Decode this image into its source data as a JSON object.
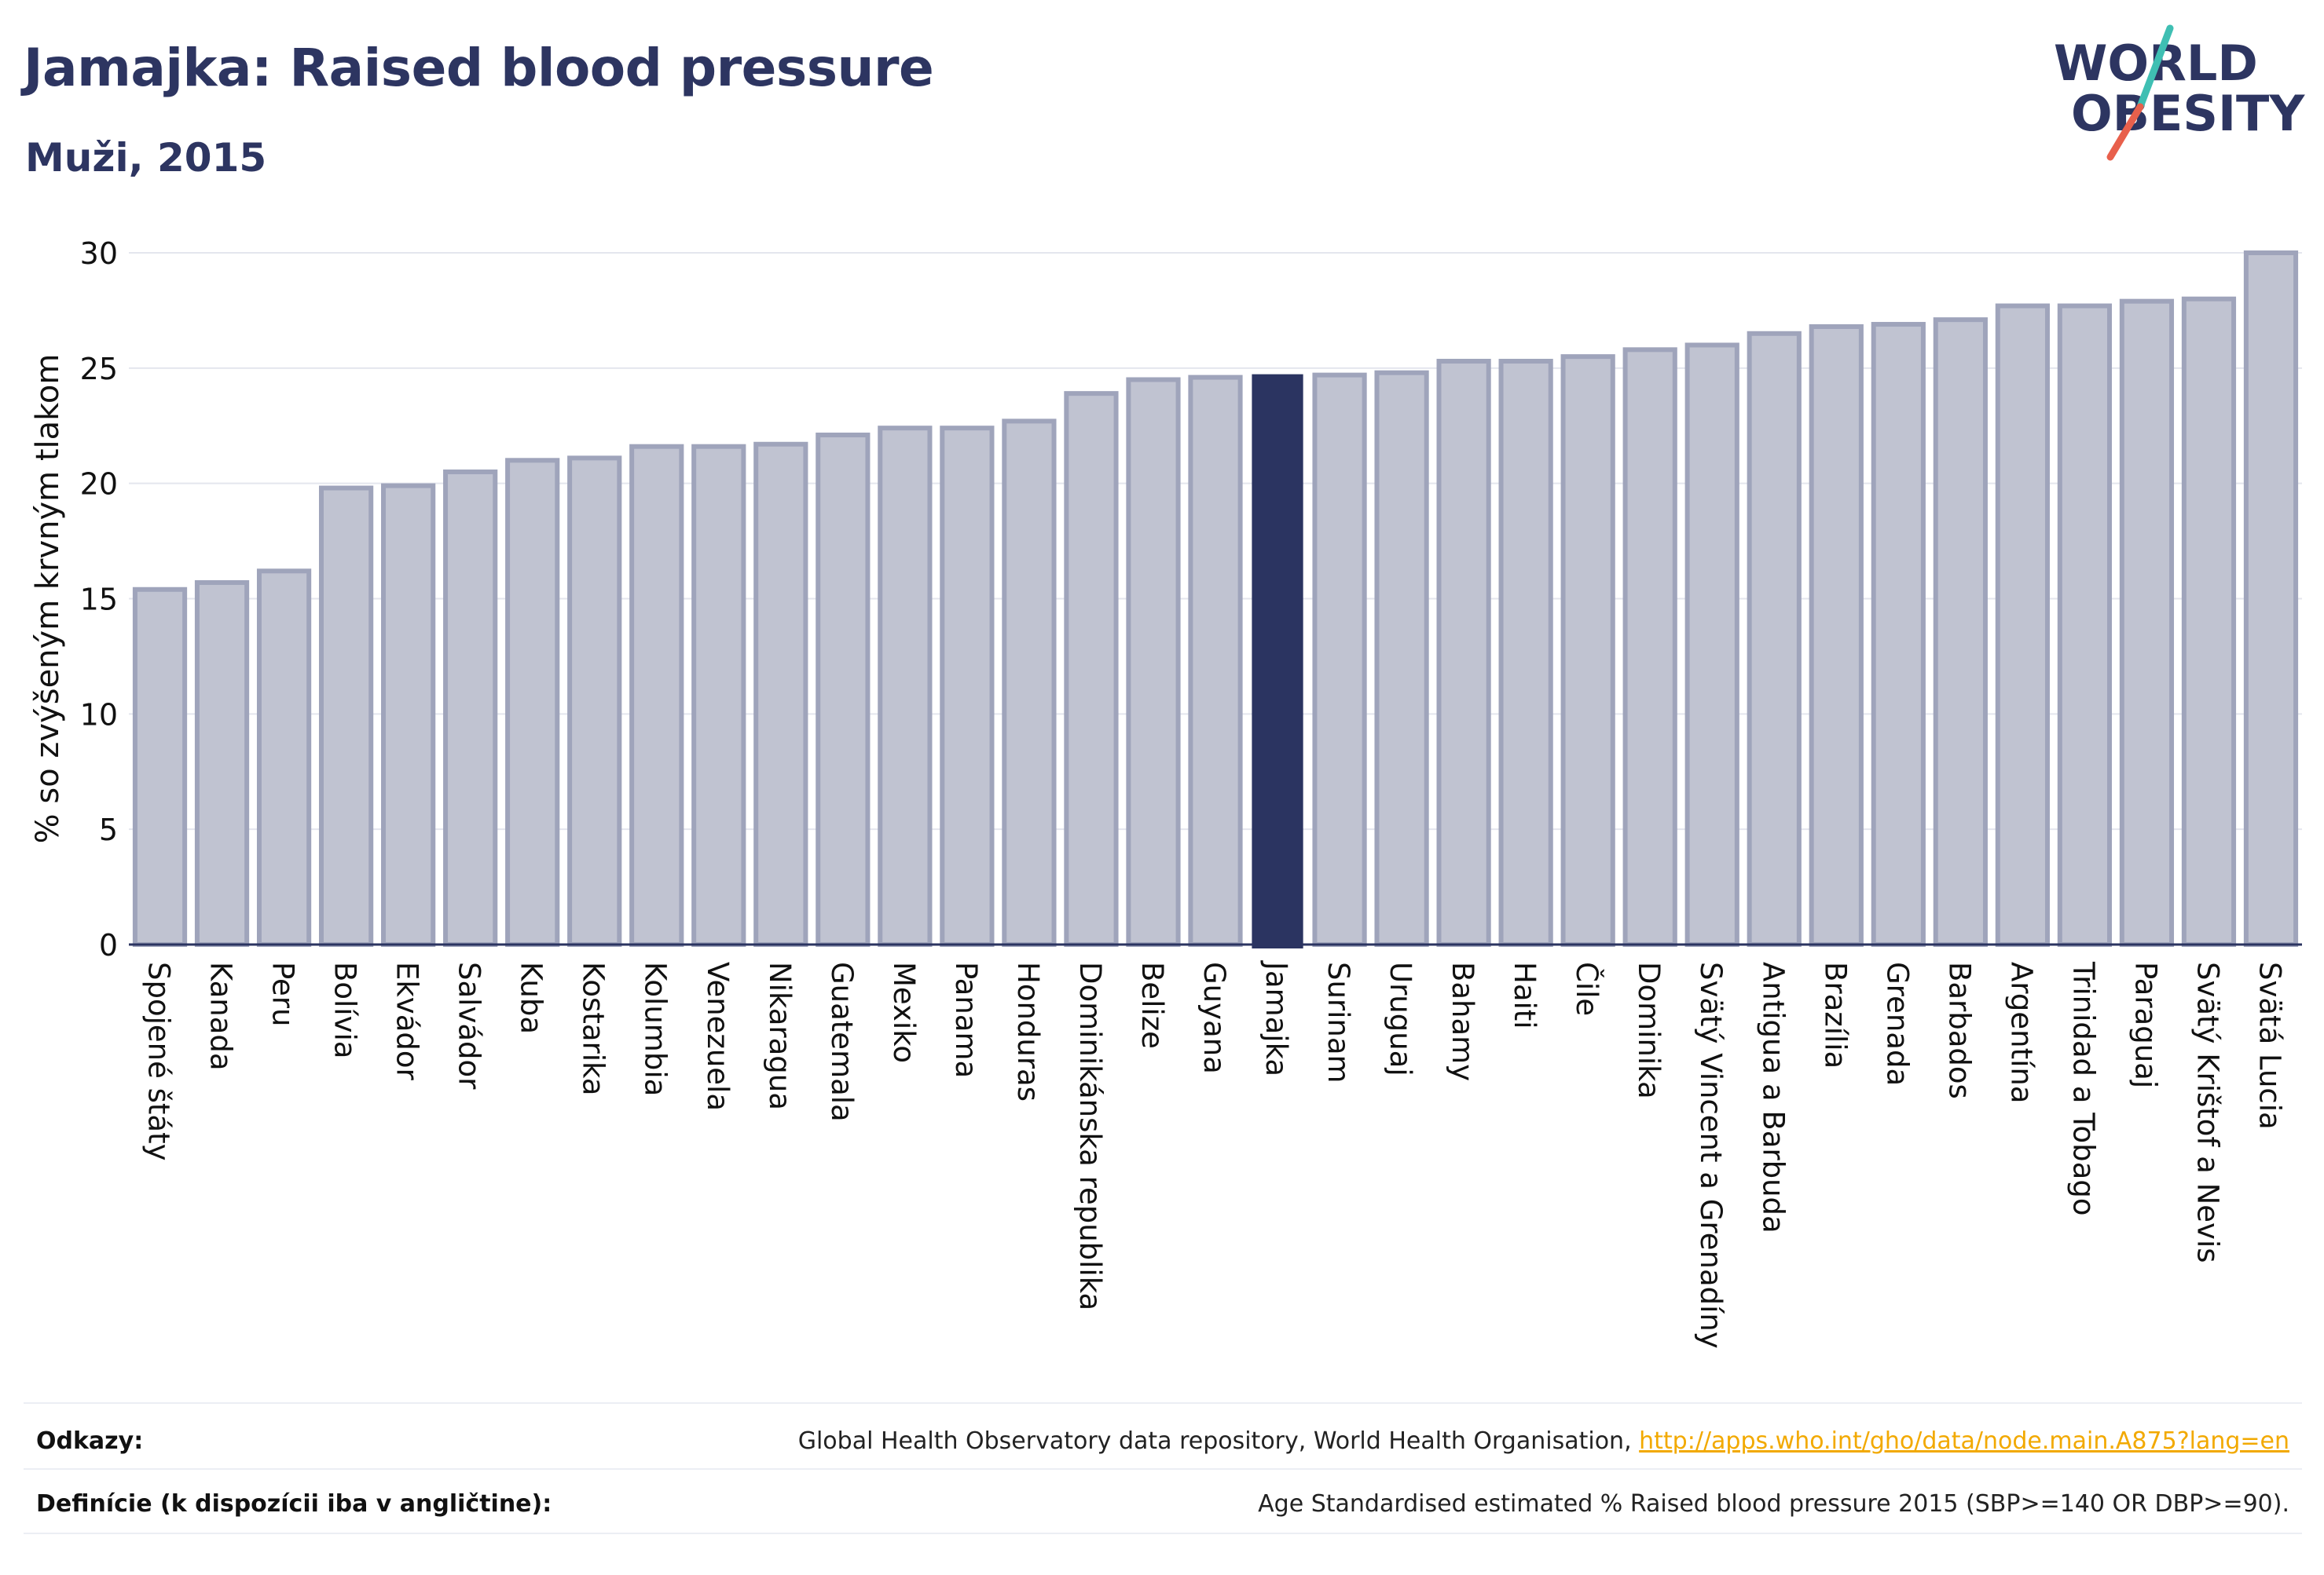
{
  "header": {
    "title": "Jamajka: Raised blood pressure",
    "subtitle": "Muži, 2015"
  },
  "logo": {
    "line1": "WORLD",
    "line2": "OBESITY"
  },
  "chart_data": {
    "type": "bar",
    "ylabel": "% so zvýšeným krvným tlakom",
    "ylim": [
      0,
      30
    ],
    "yticks": [
      0,
      5,
      10,
      15,
      20,
      25,
      30
    ],
    "grid": true,
    "highlight": "Jamajka",
    "colors": {
      "bar": "#c0c3d1",
      "bar_edge": "#9fa4bb",
      "highlight": "#2b3461",
      "grid": "#e4e6ee",
      "axis": "#2b3461"
    },
    "categories": [
      "Spojené štáty",
      "Kanada",
      "Peru",
      "Bolívia",
      "Ekvádor",
      "Salvádor",
      "Kuba",
      "Kostarika",
      "Kolumbia",
      "Venezuela",
      "Nikaragua",
      "Guatemala",
      "Mexiko",
      "Panama",
      "Honduras",
      "Dominikánska republika",
      "Belize",
      "Guyana",
      "Jamajka",
      "Surinam",
      "Uruguaj",
      "Bahamy",
      "Haiti",
      "Čile",
      "Dominika",
      "Svätý Vincent a Grenadíny",
      "Antigua a Barbuda",
      "Brazília",
      "Grenada",
      "Barbados",
      "Argentína",
      "Trinidad a Tobago",
      "Paraguaj",
      "Svätý Krištof a Nevis",
      "Svätá Lucia"
    ],
    "values": [
      15.4,
      15.7,
      16.2,
      19.8,
      19.9,
      20.5,
      21.0,
      21.1,
      21.6,
      21.6,
      21.7,
      22.1,
      22.4,
      22.4,
      22.7,
      23.9,
      24.5,
      24.6,
      24.7,
      24.7,
      24.8,
      25.3,
      25.3,
      25.5,
      25.8,
      26.0,
      26.5,
      26.8,
      26.9,
      27.1,
      27.7,
      27.7,
      27.9,
      28.0,
      30.0
    ]
  },
  "footer": {
    "refs_label": "Odkazy:",
    "refs_text": "Global Health Observatory data repository, World Health Organisation, ",
    "refs_link": "http://apps.who.int/gho/data/node.main.A875?lang=en",
    "defs_label": "Definície (k dispozícii iba v angličtine):",
    "defs_text": "Age Standardised estimated % Raised blood pressure 2015 (SBP>=140 OR DBP>=90)."
  }
}
